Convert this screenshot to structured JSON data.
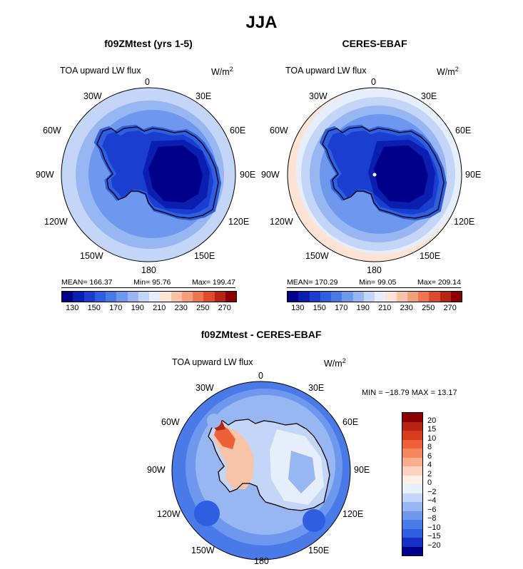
{
  "figure": {
    "title": "JJA"
  },
  "panels": [
    {
      "title": "f09ZMtest (yrs 1-5)",
      "variable": "TOA upward LW flux",
      "units": "W/m",
      "units_sup": "2",
      "stats": {
        "mean": "MEAN= 166.37",
        "min": "Min=  95.76",
        "max": "Max= 199.47"
      }
    },
    {
      "title": "CERES-EBAF",
      "variable": "TOA upward LW flux",
      "units": "W/m",
      "units_sup": "2",
      "stats": {
        "mean": "MEAN= 170.29",
        "min": "Min=  99.05",
        "max": "Max= 209.14"
      }
    },
    {
      "title": "f09ZMtest - CERES-EBAF",
      "variable": "TOA upward LW flux",
      "units": "W/m",
      "units_sup": "2",
      "minmax": "MIN = −18.79 MAX =  13.17"
    }
  ],
  "map_labels": {
    "top": "0",
    "bottom": "180",
    "left": [
      "30W",
      "60W",
      "90W",
      "120W",
      "150W"
    ],
    "right": [
      "30E",
      "60E",
      "90E",
      "120E",
      "150E"
    ]
  },
  "chart_data": [
    {
      "type": "heatmap",
      "projection": "south-polar-stereographic",
      "title": "f09ZMtest (yrs 1-5)",
      "field": "TOA upward LW flux",
      "units": "W/m2",
      "stats": {
        "mean": 166.37,
        "min": 95.76,
        "max": 199.47
      },
      "colorbar": {
        "levels": [
          130,
          140,
          150,
          160,
          170,
          180,
          190,
          200,
          210,
          220,
          230,
          240,
          250,
          260,
          270
        ],
        "tick_labels": [
          "130",
          "150",
          "170",
          "190",
          "210",
          "230",
          "250",
          "270"
        ]
      }
    },
    {
      "type": "heatmap",
      "projection": "south-polar-stereographic",
      "title": "CERES-EBAF",
      "field": "TOA upward LW flux",
      "units": "W/m2",
      "stats": {
        "mean": 170.29,
        "min": 99.05,
        "max": 209.14
      },
      "colorbar": {
        "levels": [
          130,
          140,
          150,
          160,
          170,
          180,
          190,
          200,
          210,
          220,
          230,
          240,
          250,
          260,
          270
        ],
        "tick_labels": [
          "130",
          "150",
          "170",
          "190",
          "210",
          "230",
          "250",
          "270"
        ]
      }
    },
    {
      "type": "heatmap",
      "projection": "south-polar-stereographic",
      "title": "f09ZMtest - CERES-EBAF",
      "field": "TOA upward LW flux",
      "units": "W/m2",
      "stats": {
        "min": -18.79,
        "max": 13.17
      },
      "colorbar": {
        "levels": [
          20,
          15,
          10,
          8,
          6,
          4,
          2,
          0,
          -2,
          -4,
          -6,
          -8,
          -10,
          -15,
          -20
        ],
        "tick_labels": [
          "20",
          "15",
          "10",
          "8",
          "6",
          "4",
          "2",
          "0",
          "−2",
          "−4",
          "−6",
          "−8",
          "−10",
          "−15",
          "−20"
        ]
      }
    }
  ],
  "colors": {
    "seq16": [
      "#00008b",
      "#0a1fb0",
      "#1a3fd0",
      "#2f5ee0",
      "#4a7ae8",
      "#6e97ee",
      "#98b6f2",
      "#c4d6f7",
      "#e6eefb",
      "#fde3d4",
      "#f9c3a8",
      "#f59f7c",
      "#ef7550",
      "#de4a2a",
      "#b82414",
      "#8b0000"
    ],
    "div16": [
      "#8b0000",
      "#b82414",
      "#d73c1e",
      "#ee6038",
      "#f5865e",
      "#f9ad8c",
      "#fcd3bf",
      "#fdeee6",
      "#e8f0fb",
      "#c4d6f7",
      "#98b6f2",
      "#6e97ee",
      "#4a7ae8",
      "#2f5ee0",
      "#1530c8",
      "#00008b"
    ]
  }
}
